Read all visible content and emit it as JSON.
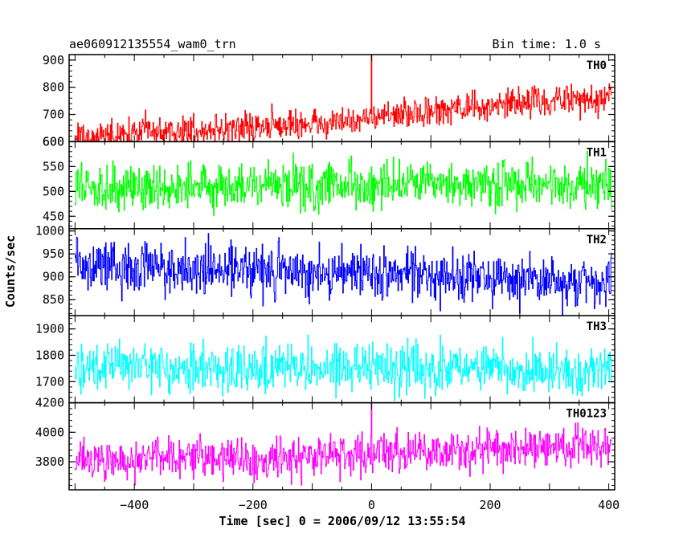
{
  "header": {
    "title": "ae060912135554_wam0_trn",
    "bin_time": "Bin time: 1.0 s"
  },
  "chart_data": {
    "type": "line",
    "title": "ae060912135554_wam0_trn",
    "subtitle": "Bin time: 1.0 s",
    "xlabel": "Time [sec] 0 = 2006/09/12 13:55:54",
    "ylabel": "Counts/sec",
    "xlim": [
      -510,
      410
    ],
    "x_ticks": [
      -400,
      -200,
      0,
      200,
      400
    ],
    "x_tick_labels": [
      "−400",
      "−200",
      "0",
      "200",
      "400"
    ],
    "x_start": -500,
    "x_end": 405,
    "x_step": 1.0,
    "panels": [
      {
        "name": "TH0",
        "color": "#ff0000",
        "ylim": [
          600,
          920
        ],
        "y_ticks": [
          600,
          700,
          800,
          900
        ],
        "y_tick_labels": [
          "600",
          "700",
          "800",
          "900"
        ],
        "trend": [
          [
            -500,
            615
          ],
          [
            -300,
            640
          ],
          [
            -100,
            665
          ],
          [
            100,
            710
          ],
          [
            300,
            750
          ],
          [
            405,
            765
          ]
        ],
        "noise": 28,
        "spike": {
          "x": 0,
          "y": 920
        }
      },
      {
        "name": "TH1",
        "color": "#00ff00",
        "ylim": [
          425,
          600
        ],
        "y_ticks": [
          450,
          500,
          550,
          600
        ],
        "y_tick_labels": [
          "450",
          "500",
          "550",
          "600"
        ],
        "trend": [
          [
            -500,
            510
          ],
          [
            405,
            512
          ]
        ],
        "noise": 24
      },
      {
        "name": "TH2",
        "color": "#0000ff",
        "ylim": [
          815,
          1005
        ],
        "y_ticks": [
          850,
          900,
          950,
          1000
        ],
        "y_tick_labels": [
          "850",
          "900",
          "950",
          "1000"
        ],
        "trend": [
          [
            -500,
            925
          ],
          [
            0,
            908
          ],
          [
            405,
            885
          ]
        ],
        "noise": 28
      },
      {
        "name": "TH3",
        "color": "#00ffff",
        "ylim": [
          1620,
          1950
        ],
        "y_ticks": [
          1700,
          1800,
          1900
        ],
        "y_tick_labels": [
          "1700",
          "1800",
          "1900"
        ],
        "trend": [
          [
            -500,
            1755
          ],
          [
            405,
            1745
          ]
        ],
        "noise": 45
      },
      {
        "name": "TH0123",
        "color": "#ff00ff",
        "ylim": [
          3610,
          4200
        ],
        "y_ticks": [
          3800,
          4000,
          4200
        ],
        "y_tick_labels": [
          "3800",
          "4000",
          "4200"
        ],
        "trend": [
          [
            -500,
            3810
          ],
          [
            -200,
            3830
          ],
          [
            0,
            3850
          ],
          [
            200,
            3880
          ],
          [
            405,
            3920
          ]
        ],
        "noise": 70,
        "spike": {
          "x": 0,
          "y": 4220
        }
      }
    ]
  }
}
